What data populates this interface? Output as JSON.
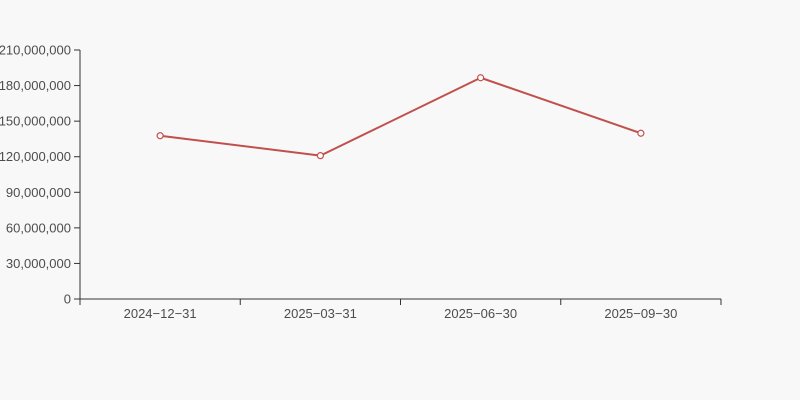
{
  "chart_data": {
    "type": "line",
    "title": "",
    "xlabel": "",
    "ylabel": "",
    "categories": [
      "2024−12−31",
      "2025−03−31",
      "2025−06−30",
      "2025−09−30"
    ],
    "series": [
      {
        "name": "series-1",
        "values": [
          137700000,
          120900000,
          186600000,
          139800000
        ]
      }
    ],
    "ylim": [
      0,
      210000000
    ],
    "y_tick_step": 30000000,
    "y_tick_labels": [
      "0",
      "30,000,000",
      "60,000,000",
      "90,000,000",
      "120,000,000",
      "150,000,000",
      "180,000,000",
      "210,000,000"
    ],
    "grid": false,
    "legend": "none",
    "marker": "open-circle",
    "colors": {
      "line": "#c1504c",
      "marker_fill": "#ffffff",
      "background": "#f8f8f8",
      "axis": "#333333",
      "label": "#4d4d4d"
    }
  }
}
